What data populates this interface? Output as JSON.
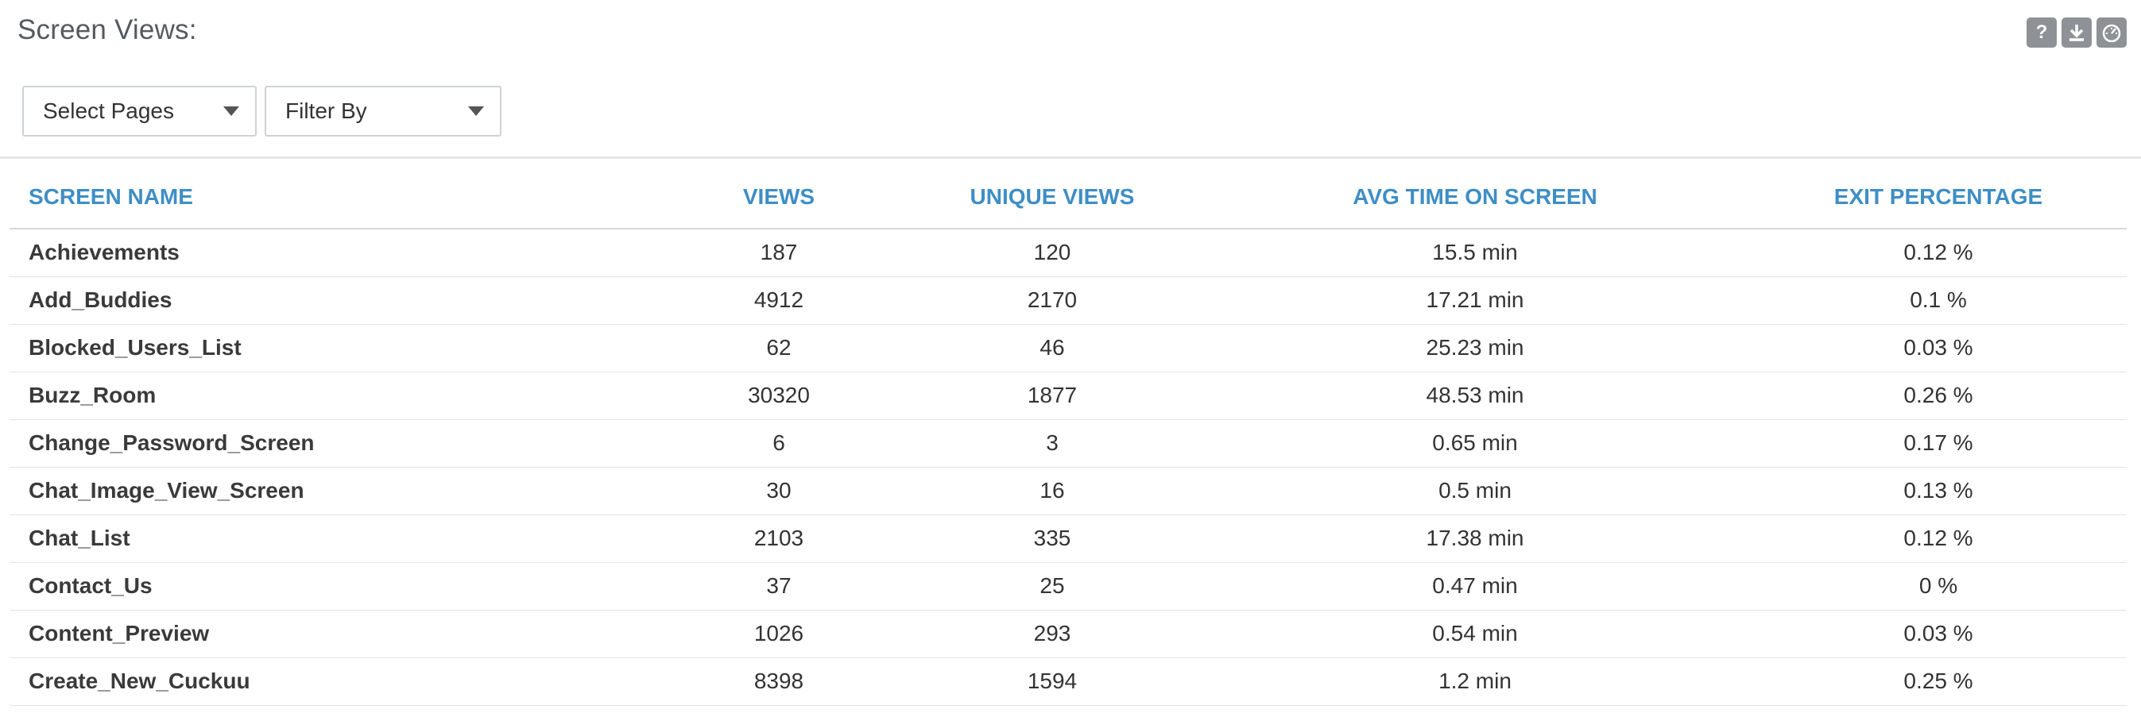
{
  "header": {
    "title": "Screen Views:"
  },
  "toolbar": {
    "help_glyph": "?",
    "icons": [
      "help-icon",
      "download-icon",
      "dashboard-icon"
    ]
  },
  "controls": {
    "pages_select": "Select Pages",
    "filter_select": "Filter By"
  },
  "colors": {
    "header_text": "#3e8ec5",
    "icon_bg": "#8e9195",
    "title_text": "#555a5f"
  },
  "table": {
    "columns": {
      "name": "SCREEN NAME",
      "views": "VIEWS",
      "unique": "UNIQUE VIEWS",
      "avg": "AVG TIME ON SCREEN",
      "exit": "EXIT PERCENTAGE"
    },
    "rows": [
      {
        "name": "Achievements",
        "views": "187",
        "unique": "120",
        "avg": "15.5 min",
        "exit": "0.12 %"
      },
      {
        "name": "Add_Buddies",
        "views": "4912",
        "unique": "2170",
        "avg": "17.21 min",
        "exit": "0.1 %"
      },
      {
        "name": "Blocked_Users_List",
        "views": "62",
        "unique": "46",
        "avg": "25.23 min",
        "exit": "0.03 %"
      },
      {
        "name": "Buzz_Room",
        "views": "30320",
        "unique": "1877",
        "avg": "48.53 min",
        "exit": "0.26 %"
      },
      {
        "name": "Change_Password_Screen",
        "views": "6",
        "unique": "3",
        "avg": "0.65 min",
        "exit": "0.17 %"
      },
      {
        "name": "Chat_Image_View_Screen",
        "views": "30",
        "unique": "16",
        "avg": "0.5 min",
        "exit": "0.13 %"
      },
      {
        "name": "Chat_List",
        "views": "2103",
        "unique": "335",
        "avg": "17.38 min",
        "exit": "0.12 %"
      },
      {
        "name": "Contact_Us",
        "views": "37",
        "unique": "25",
        "avg": "0.47 min",
        "exit": "0 %"
      },
      {
        "name": "Content_Preview",
        "views": "1026",
        "unique": "293",
        "avg": "0.54 min",
        "exit": "0.03 %"
      },
      {
        "name": "Create_New_Cuckuu",
        "views": "8398",
        "unique": "1594",
        "avg": "1.2 min",
        "exit": "0.25 %"
      }
    ]
  }
}
